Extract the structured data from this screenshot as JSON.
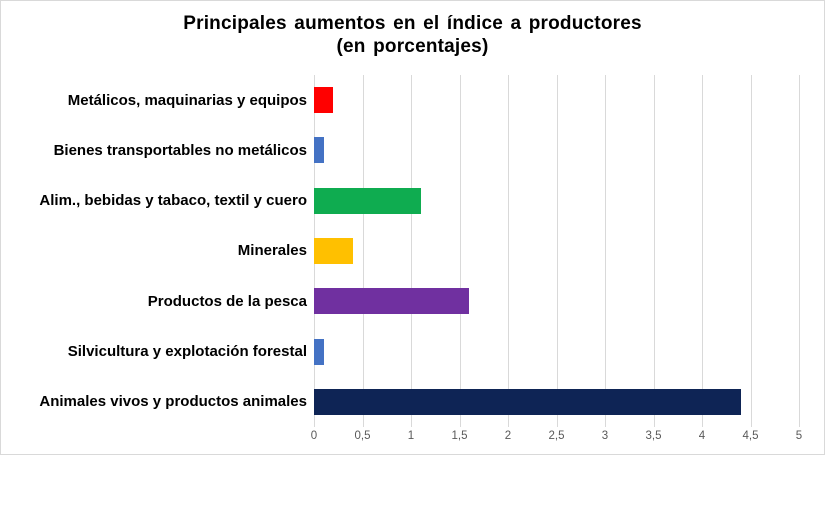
{
  "title": {
    "line1": "Principales aumentos en el índice a productores",
    "line2": "(en porcentajes)"
  },
  "chart_data": {
    "type": "bar",
    "orientation": "horizontal",
    "title": "Principales aumentos en el índice a productores (en porcentajes)",
    "categories": [
      "Metálicos, maquinarias y equipos",
      "Bienes transportables no metálicos",
      "Alim., bebidas y tabaco, textil y cuero",
      "Minerales",
      "Productos de la pesca",
      "Silvicultura y explotación forestal",
      "Animales vivos y productos animales"
    ],
    "values": [
      0.2,
      0.1,
      1.1,
      0.4,
      1.6,
      0.1,
      4.4
    ],
    "bar_colors": [
      "#ff0000",
      "#4472c4",
      "#0fac50",
      "#ffc000",
      "#7030a0",
      "#4472c4",
      "#0e2455"
    ],
    "x_ticks": [
      "0",
      "0,5",
      "1",
      "1,5",
      "2",
      "2,5",
      "3",
      "3,5",
      "4",
      "4,5",
      "5"
    ],
    "x_tick_values": [
      0,
      0.5,
      1,
      1.5,
      2,
      2.5,
      3,
      3.5,
      4,
      4.5,
      5
    ],
    "xlim": [
      0,
      5
    ],
    "grid": true,
    "decimal_separator": ",",
    "legend": "none"
  },
  "colors": {
    "gridline": "#d9d9d9",
    "frame_border": "#d9d9d9",
    "tick_label": "#595959",
    "title_text": "#000000",
    "category_text": "#000000",
    "background": "#ffffff"
  }
}
